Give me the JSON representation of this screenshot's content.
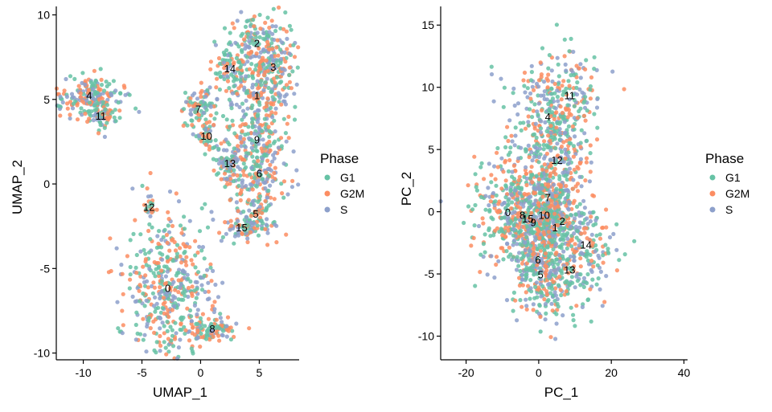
{
  "legend": {
    "title": "Phase",
    "entries": [
      {
        "name": "G1",
        "color": "#66C2A5"
      },
      {
        "name": "G2M",
        "color": "#FC8D62"
      },
      {
        "name": "S",
        "color": "#8DA0CB"
      }
    ]
  },
  "chart_data": [
    {
      "type": "scatter",
      "title": "",
      "xlabel": "UMAP_1",
      "ylabel": "UMAP_2",
      "xlim": [
        -12.3,
        8.4
      ],
      "ylim": [
        -10.4,
        10.5
      ],
      "xticks": [
        -10,
        -5,
        0,
        5
      ],
      "yticks": [
        -10,
        -5,
        0,
        5,
        10
      ],
      "grid": false,
      "color_by": "Phase",
      "clusters": [
        {
          "label": "0",
          "x": -2.8,
          "y": -6.2,
          "sx": 2.0,
          "sy": 2.2,
          "n": 460
        },
        {
          "label": "1",
          "x": 4.8,
          "y": 5.2,
          "sx": 1.7,
          "sy": 1.1,
          "n": 170
        },
        {
          "label": "2",
          "x": 4.8,
          "y": 8.3,
          "sx": 1.6,
          "sy": 0.9,
          "n": 160
        },
        {
          "label": "3",
          "x": 6.2,
          "y": 6.9,
          "sx": 1.0,
          "sy": 1.0,
          "n": 110
        },
        {
          "label": "4",
          "x": -9.5,
          "y": 5.2,
          "sx": 1.5,
          "sy": 0.6,
          "n": 190
        },
        {
          "label": "5",
          "x": 4.7,
          "y": -1.8,
          "sx": 1.1,
          "sy": 0.8,
          "n": 110
        },
        {
          "label": "6",
          "x": 5.0,
          "y": 0.6,
          "sx": 1.2,
          "sy": 0.8,
          "n": 120
        },
        {
          "label": "7",
          "x": -0.2,
          "y": 4.4,
          "sx": 0.7,
          "sy": 0.6,
          "n": 80
        },
        {
          "label": "8",
          "x": 1.0,
          "y": -8.6,
          "sx": 1.0,
          "sy": 0.4,
          "n": 90
        },
        {
          "label": "9",
          "x": 4.8,
          "y": 2.6,
          "sx": 1.3,
          "sy": 0.9,
          "n": 130
        },
        {
          "label": "10",
          "x": 0.5,
          "y": 2.8,
          "sx": 0.5,
          "sy": 0.5,
          "n": 40
        },
        {
          "label": "11",
          "x": -8.5,
          "y": 4.0,
          "sx": 0.6,
          "sy": 0.4,
          "n": 70
        },
        {
          "label": "12",
          "x": -4.4,
          "y": -1.4,
          "sx": 0.2,
          "sy": 0.3,
          "n": 20
        },
        {
          "label": "13",
          "x": 2.5,
          "y": 1.2,
          "sx": 0.7,
          "sy": 0.6,
          "n": 80
        },
        {
          "label": "14",
          "x": 2.5,
          "y": 6.8,
          "sx": 0.8,
          "sy": 0.5,
          "n": 70
        },
        {
          "label": "15",
          "x": 3.5,
          "y": -2.6,
          "sx": 0.6,
          "sy": 0.4,
          "n": 40
        }
      ]
    },
    {
      "type": "scatter",
      "title": "",
      "xlabel": "PC_1",
      "ylabel": "PC_2",
      "xlim": [
        -27,
        41
      ],
      "ylim": [
        -11.9,
        16.5
      ],
      "xticks": [
        -20,
        0,
        20,
        40
      ],
      "yticks": [
        -10,
        -5,
        0,
        5,
        10,
        15
      ],
      "grid": false,
      "color_by": "Phase",
      "clusters": [
        {
          "label": "0",
          "x": -8.5,
          "y": -0.1,
          "sx": 6.0,
          "sy": 2.5,
          "n": 230
        },
        {
          "label": "1",
          "x": 4.5,
          "y": -1.3,
          "sx": 4.5,
          "sy": 2.3,
          "n": 140
        },
        {
          "label": "2",
          "x": 6.5,
          "y": -0.8,
          "sx": 4.5,
          "sy": 2.3,
          "n": 130
        },
        {
          "label": "4",
          "x": 2.5,
          "y": 7.6,
          "sx": 5.5,
          "sy": 2.3,
          "n": 220
        },
        {
          "label": "5",
          "x": 0.5,
          "y": -5.1,
          "sx": 4.0,
          "sy": 2.0,
          "n": 120
        },
        {
          "label": "6",
          "x": -0.2,
          "y": -3.9,
          "sx": 4.0,
          "sy": 2.0,
          "n": 110
        },
        {
          "label": "7",
          "x": 2.5,
          "y": 1.1,
          "sx": 3.5,
          "sy": 1.8,
          "n": 90
        },
        {
          "label": "8",
          "x": -4.5,
          "y": -0.3,
          "sx": 4.0,
          "sy": 1.8,
          "n": 80
        },
        {
          "label": "9",
          "x": -1.5,
          "y": -0.9,
          "sx": 4.0,
          "sy": 1.8,
          "n": 90
        },
        {
          "label": "10",
          "x": 1.5,
          "y": -0.3,
          "sx": 4.0,
          "sy": 1.8,
          "n": 90
        },
        {
          "label": "11",
          "x": 8.5,
          "y": 9.3,
          "sx": 5.0,
          "sy": 2.0,
          "n": 130
        },
        {
          "label": "12",
          "x": 5.0,
          "y": 4.1,
          "sx": 4.5,
          "sy": 1.5,
          "n": 110
        },
        {
          "label": "13",
          "x": 8.5,
          "y": -4.7,
          "sx": 4.5,
          "sy": 2.0,
          "n": 90
        },
        {
          "label": "14",
          "x": 13.0,
          "y": -2.7,
          "sx": 4.5,
          "sy": 2.0,
          "n": 80
        },
        {
          "label": "15",
          "x": -3.0,
          "y": -0.6,
          "sx": 3.5,
          "sy": 1.5,
          "n": 70
        }
      ]
    }
  ]
}
